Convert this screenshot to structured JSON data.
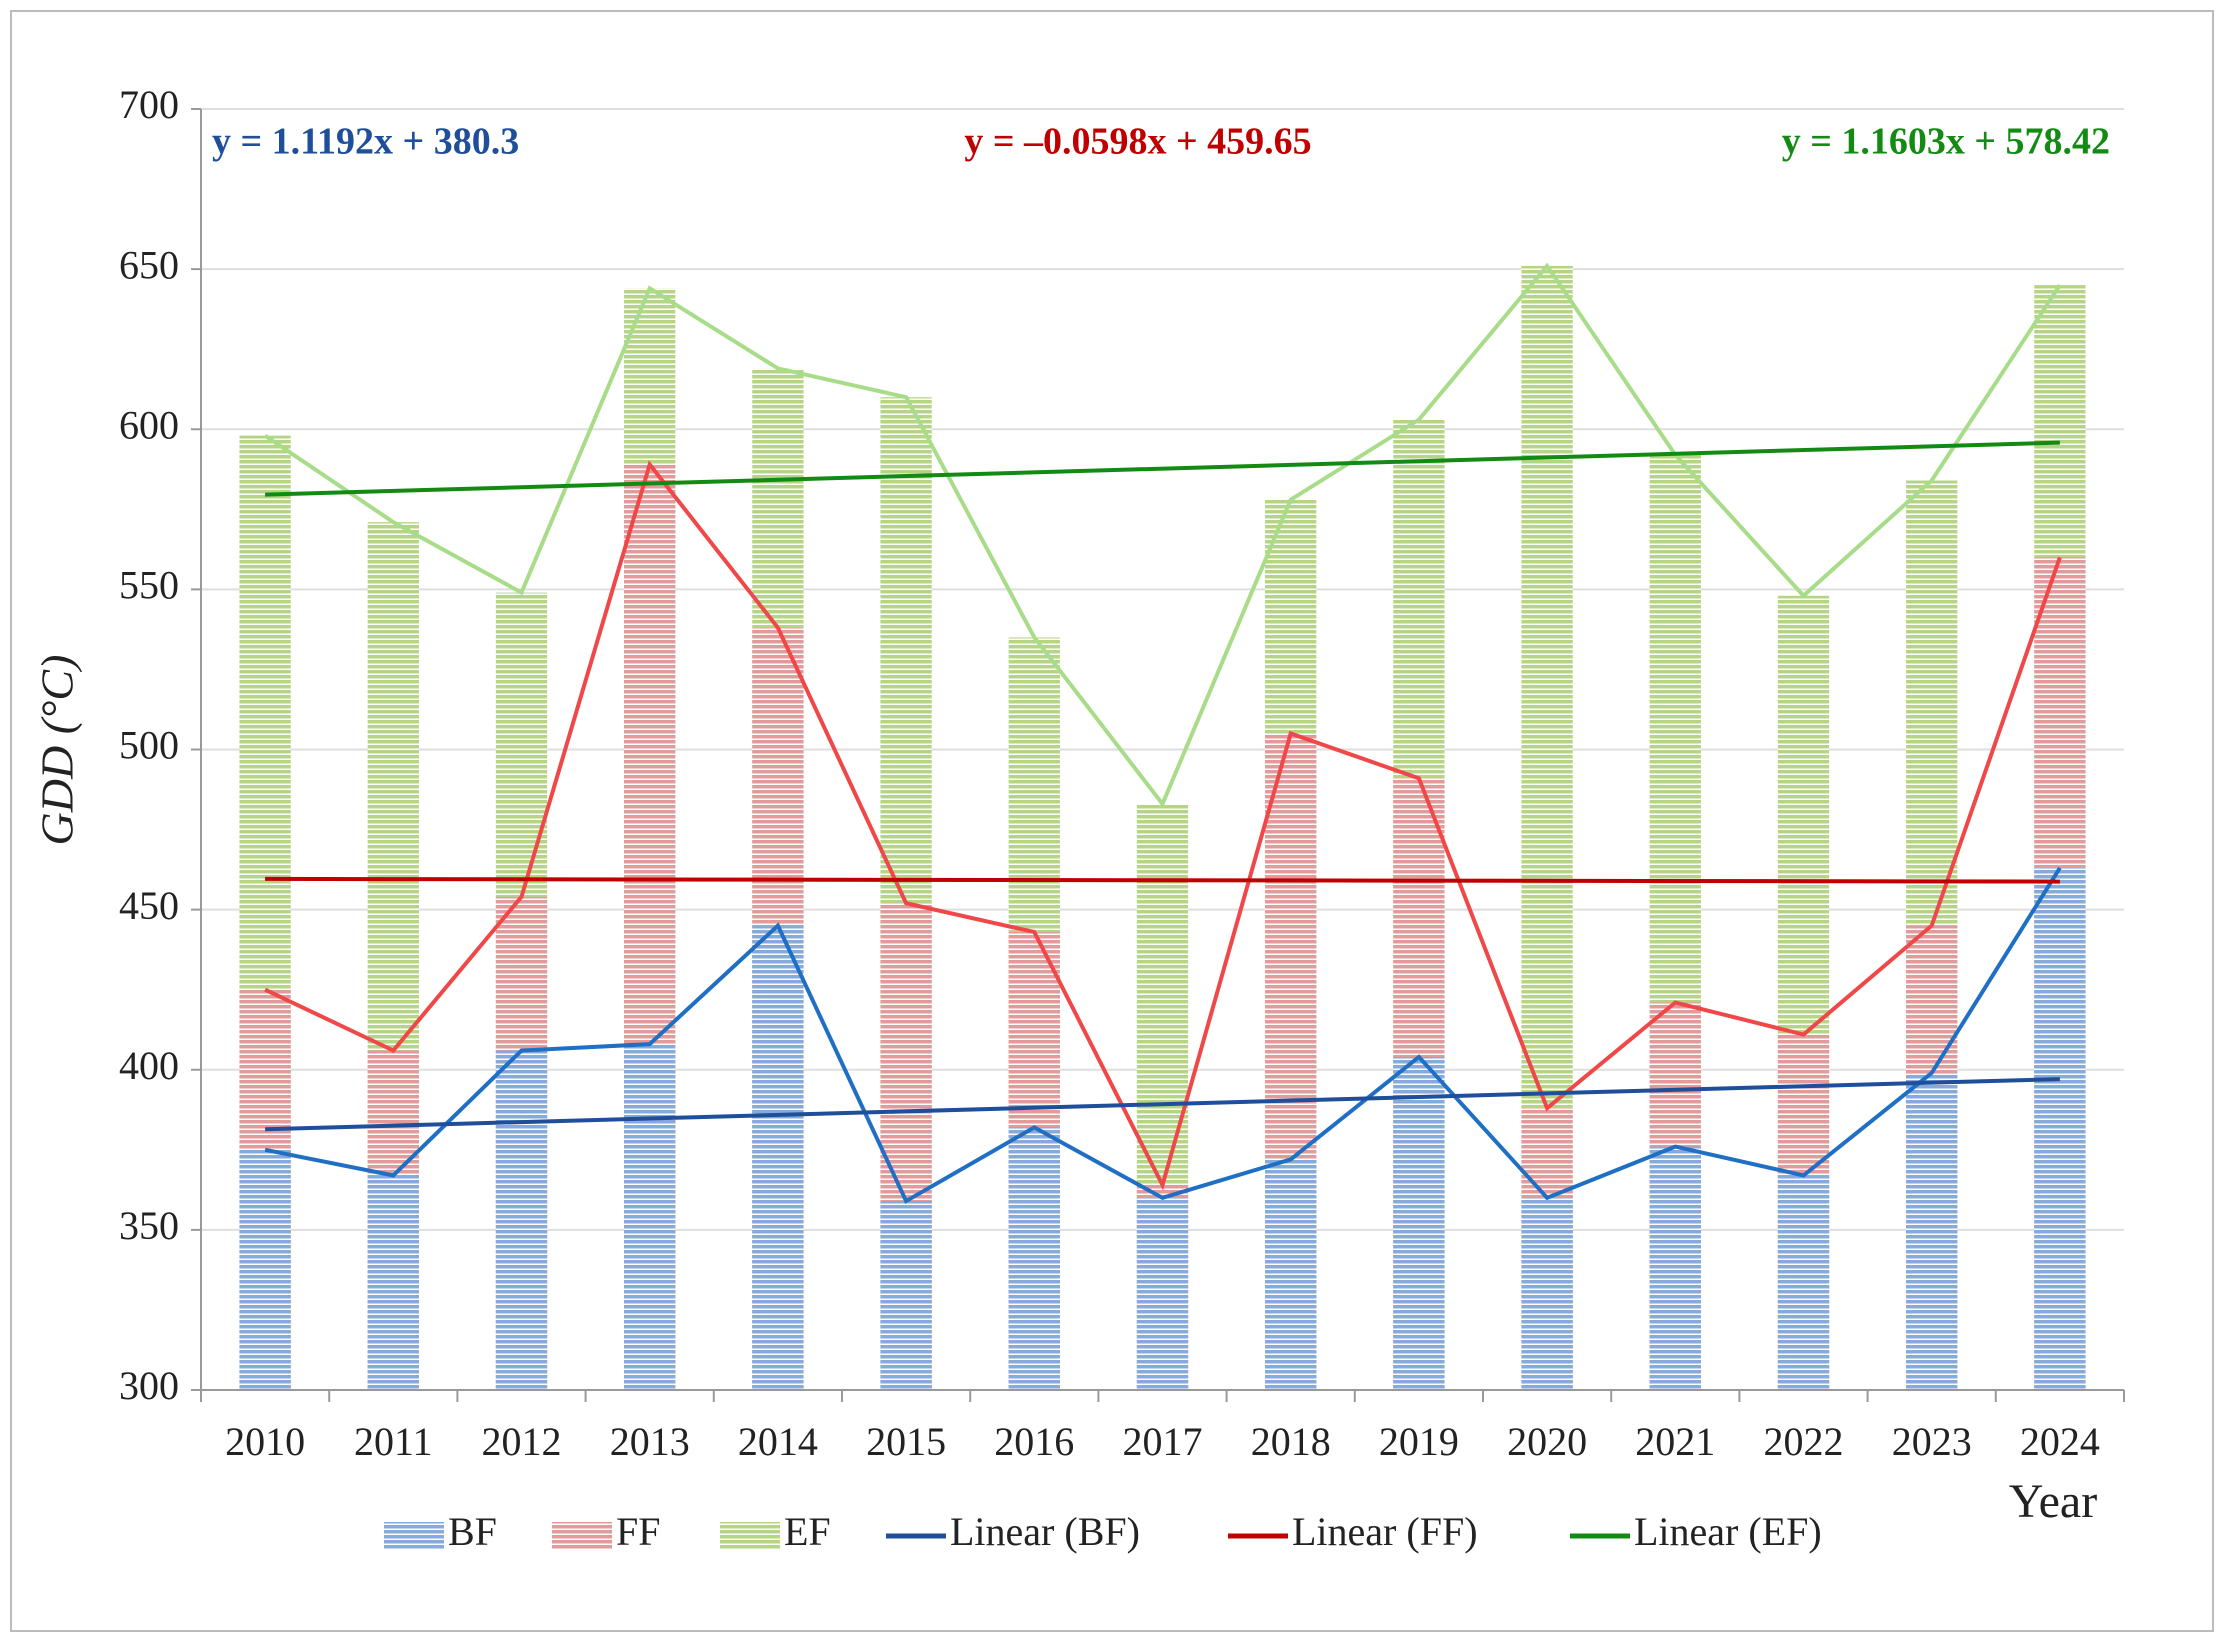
{
  "chart_data": {
    "type": "overlap_bar_line",
    "y_label": "GDD (°C)",
    "x_label": "Year",
    "categories": [
      "2010",
      "2011",
      "2012",
      "2013",
      "2014",
      "2015",
      "2016",
      "2017",
      "2018",
      "2019",
      "2020",
      "2021",
      "2022",
      "2023",
      "2024"
    ],
    "series": [
      {
        "name": "EF",
        "color": "#b5d585",
        "line_color": "#a8dc88",
        "values": [
          598,
          571,
          549,
          644,
          619,
          610,
          535,
          483,
          578,
          603,
          651,
          592,
          548,
          584,
          645
        ]
      },
      {
        "name": "FF",
        "color": "#e39a9a",
        "line_color": "#f04848",
        "values": [
          425,
          406,
          454,
          589,
          538,
          452,
          443,
          364,
          505,
          491,
          388,
          421,
          411,
          445,
          560
        ]
      },
      {
        "name": "BF",
        "color": "#86aadb",
        "line_color": "#1f6fc5",
        "values": [
          375,
          367,
          406,
          408,
          445,
          359,
          382,
          360,
          372,
          404,
          360,
          376,
          367,
          399,
          463
        ]
      }
    ],
    "trendlines": [
      {
        "name": "Linear (BF)",
        "color": "#1f4e9a",
        "equation": "y = 1.1192x + 380.3",
        "slope": 1.1192,
        "intercept": 380.3
      },
      {
        "name": "Linear (FF)",
        "color": "#c00000",
        "equation": "y = –0.0598x + 459.65",
        "slope": -0.0598,
        "intercept": 459.65
      },
      {
        "name": "Linear (EF)",
        "color": "#138a13",
        "equation": "y = 1.1603x + 578.42",
        "slope": 1.1603,
        "intercept": 578.42
      }
    ],
    "ylim": [
      300,
      700
    ],
    "yticks": [
      300,
      350,
      400,
      450,
      500,
      550,
      600,
      650,
      700
    ],
    "grid": true
  }
}
